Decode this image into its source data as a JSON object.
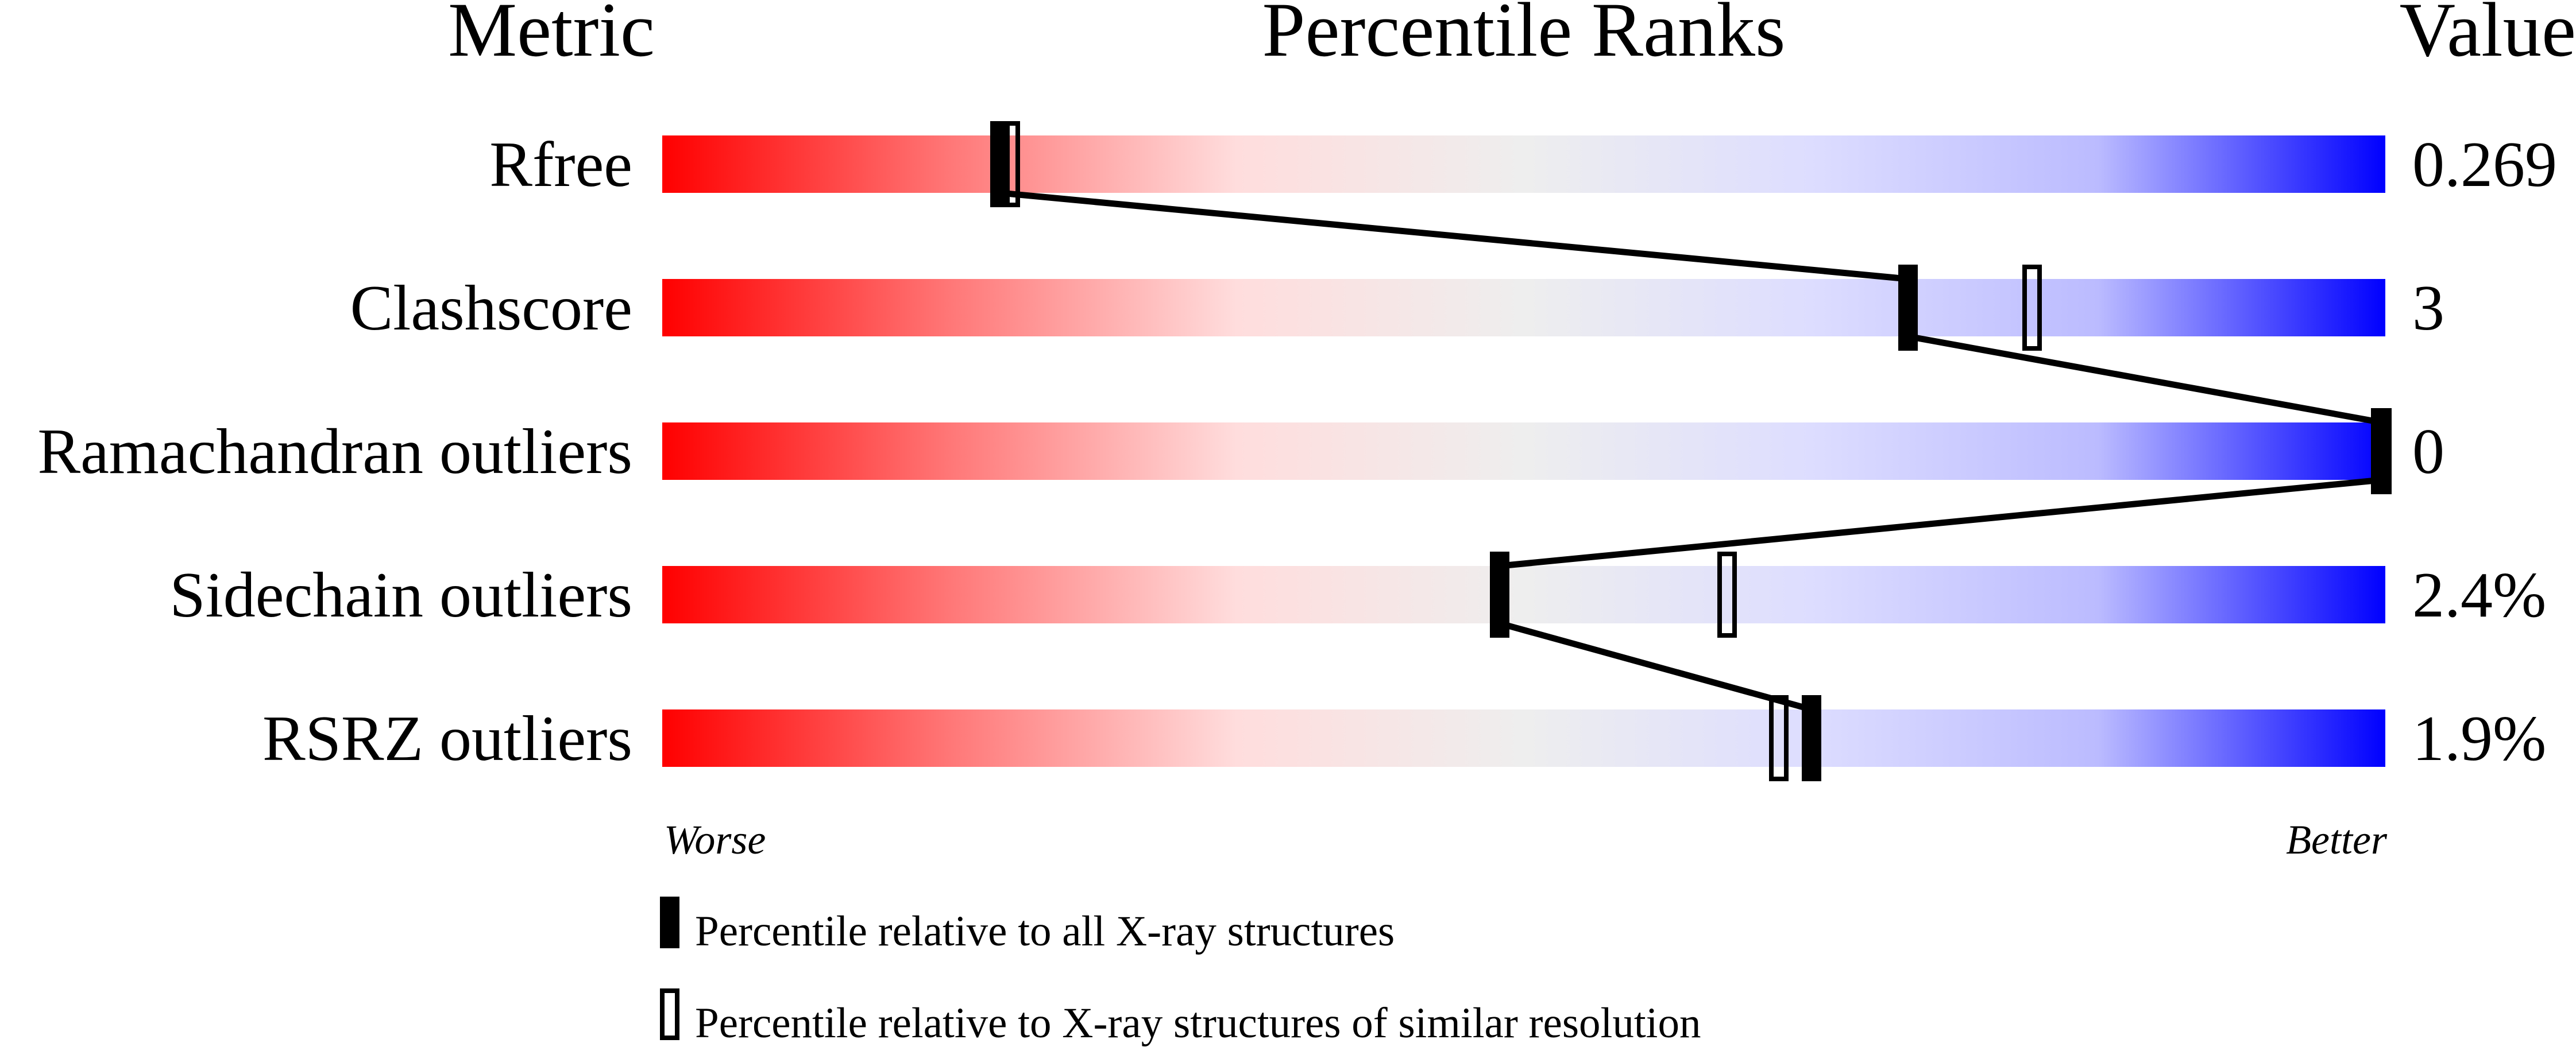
{
  "chart_data": {
    "type": "percentile-slider",
    "headers": {
      "metric": "Metric",
      "ranks": "Percentile Ranks",
      "value": "Value"
    },
    "xlim": [
      0,
      100
    ],
    "scale_left_label": "Worse",
    "scale_right_label": "Better",
    "gradient_colors": [
      "#ff0000",
      "#ff7777",
      "#ffdddd",
      "#eeeeee",
      "#ddddff",
      "#bbbbff",
      "#0000ff"
    ],
    "metrics": [
      {
        "name": "Rfree",
        "value": "0.269",
        "percentile_all": 19.6,
        "percentile_similar": 20.2
      },
      {
        "name": "Clashscore",
        "value": "3",
        "percentile_all": 72.3,
        "percentile_similar": 79.5
      },
      {
        "name": "Ramachandran outliers",
        "value": "0",
        "percentile_all": 100,
        "percentile_similar": 100
      },
      {
        "name": "Sidechain outliers",
        "value": "2.4%",
        "percentile_all": 48.6,
        "percentile_similar": 61.8
      },
      {
        "name": "RSRZ outliers",
        "value": "1.9%",
        "percentile_all": 66.7,
        "percentile_similar": 64.8
      }
    ],
    "legend": {
      "all": "Percentile relative to all X-ray structures",
      "similar": "Percentile relative to X-ray structures of similar resolution"
    }
  }
}
